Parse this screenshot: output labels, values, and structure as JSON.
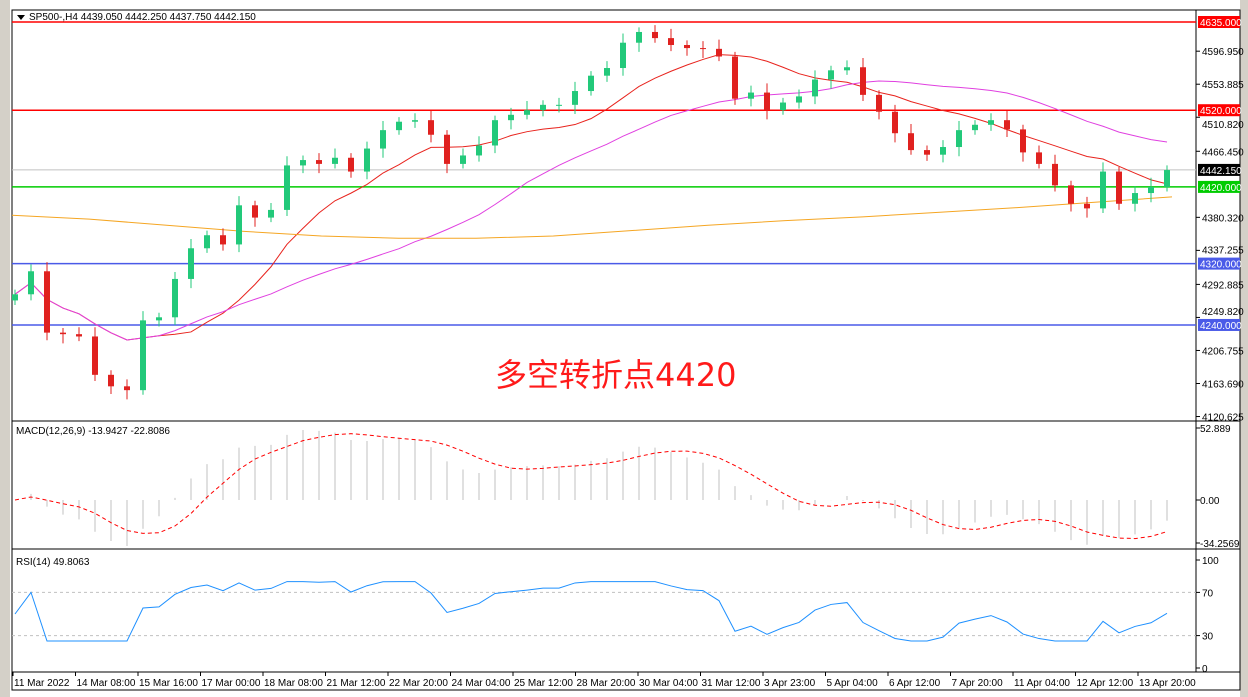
{
  "header": {
    "symbol_info": "SP500-,H4  4439.050 4442.250 4437.750 4442.150"
  },
  "annotation": "多空转折点4420",
  "colors": {
    "up": "#22c97a",
    "down": "#e0211f",
    "ma_fast": "#e8231d",
    "ma_mid": "#e040e0",
    "ma_long": "#f5a623",
    "support_res_red": "#ff0000",
    "level_green": "#00cc00",
    "level_blue": "#4a5ae8",
    "macd_hist": "#c0c0c0",
    "macd_signal": "#ff0000",
    "rsi": "#1e90ff"
  },
  "price_axis": {
    "ticks": [
      "4596.950",
      "4553.885",
      "4510.820",
      "4466.450",
      "4380.320",
      "4337.255",
      "4292.885",
      "4249.820",
      "4206.755",
      "4163.690",
      "4120.625"
    ]
  },
  "levels": [
    {
      "label": "4635.000",
      "value": 4635,
      "color": "#ff0000"
    },
    {
      "label": "4520.000",
      "value": 4520,
      "color": "#ff0000"
    },
    {
      "label": "4420.000",
      "value": 4420,
      "color": "#00cc00"
    },
    {
      "label": "4320.000",
      "value": 4320,
      "color": "#4a5ae8"
    },
    {
      "label": "4240.000",
      "value": 4240,
      "color": "#4a5ae8"
    }
  ],
  "current_price": {
    "label": "4442.150",
    "value": 4442.15
  },
  "closes": [
    4280,
    4310,
    4230,
    4228,
    4225,
    4175,
    4160,
    4155,
    4246,
    4250,
    4300,
    4340,
    4357,
    4345,
    4396,
    4380,
    4390,
    4448,
    4455,
    4450,
    4458,
    4440,
    4470,
    4494,
    4505,
    4507,
    4488,
    4450,
    4461,
    4474,
    4507,
    4514,
    4520,
    4527,
    4527,
    4545,
    4565,
    4575,
    4608,
    4622,
    4614,
    4605,
    4601,
    4600,
    4590,
    4535,
    4543,
    4520,
    4530,
    4538,
    4560,
    4572,
    4576,
    4540,
    4518,
    4490,
    4468,
    4462,
    4472,
    4494,
    4501,
    4507,
    4495,
    4465,
    4450,
    4422,
    4398,
    4392,
    4440,
    4398,
    4412,
    4420,
    4442
  ],
  "ma_long_points": [
    4383,
    4378,
    4370,
    4362,
    4356,
    4353,
    4353,
    4356,
    4363,
    4370,
    4376,
    4381,
    4387,
    4393,
    4400,
    4407
  ],
  "macd": {
    "label": "MACD(12,26,9) -13.9427 -22.8086",
    "axis": [
      "52.889",
      "0.00",
      "-34.2569"
    ],
    "max": 52.889,
    "min": -34.2569
  },
  "rsi": {
    "label": "RSI(14) 49.8063",
    "axis": [
      "100",
      "70",
      "30",
      "0"
    ]
  },
  "time_axis": [
    "11 Mar 2022",
    "14 Mar 08:00",
    "15 Mar 16:00",
    "17 Mar 00:00",
    "18 Mar 08:00",
    "21 Mar 12:00",
    "22 Mar 20:00",
    "24 Mar 04:00",
    "25 Mar 12:00",
    "28 Mar 20:00",
    "30 Mar 04:00",
    "31 Mar 12:00",
    "3 Apr 23:00",
    "5 Apr 04:00",
    "6 Apr 12:00",
    "7 Apr 20:00",
    "11 Apr 04:00",
    "12 Apr 12:00",
    "13 Apr 20:00"
  ]
}
